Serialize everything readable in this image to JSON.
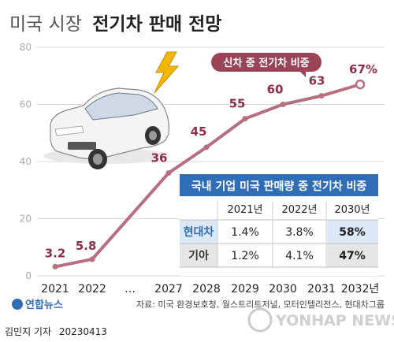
{
  "title": {
    "normal": "미국 시장",
    "bold": "전기차 판매 전망"
  },
  "chart_data": {
    "type": "line",
    "categories": [
      "2021",
      "2022",
      "…",
      "2027",
      "2028",
      "2029",
      "2030",
      "2031",
      "2032년"
    ],
    "values": [
      3.2,
      5.8,
      null,
      36,
      45,
      55,
      60,
      63,
      67
    ],
    "value_labels": [
      "3.2",
      "5.8",
      "",
      "36",
      "45",
      "55",
      "60",
      "63",
      "67%"
    ],
    "series": [
      {
        "name": "신차 중 전기차 비중",
        "values": [
          3.2,
          5.8,
          null,
          36,
          45,
          55,
          60,
          63,
          67
        ]
      }
    ],
    "y_ticks": [
      "0",
      "20",
      "40",
      "60",
      "80"
    ],
    "ylim": [
      0,
      80
    ],
    "grid": true,
    "legend": "top-right",
    "line_color": "#b76f7f",
    "label_color": "#8e2f48"
  },
  "table": {
    "title": "국내 기업 미국 판매량 중 전기차 비중",
    "headers": [
      "",
      "2021년",
      "2022년",
      "2030년"
    ],
    "rows": [
      {
        "name": "현대차",
        "values": [
          "1.4%",
          "3.8%",
          "58%"
        ]
      },
      {
        "name": "기아",
        "values": [
          "1.2%",
          "4.1%",
          "47%"
        ]
      }
    ]
  },
  "source": "자료: 미국 환경보호청, 월스트리트저널, 모터인텔리전스, 현대차그룹",
  "footer": {
    "author": "김민지 기자",
    "date": "20230413",
    "logo": "연합뉴스",
    "watermark": "YONHAP NEWS"
  },
  "colors": {
    "table_header_bg": "#2f6eb7",
    "hyundai_bg": "#dce8f5",
    "kia_bg": "#e6e6e6",
    "grid": "#d9d9d9"
  },
  "icons": [
    "electric-car-icon",
    "lightning-bolt-icon"
  ]
}
